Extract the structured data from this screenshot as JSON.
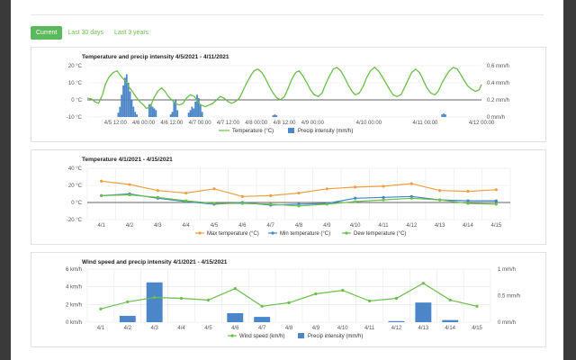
{
  "tabs": [
    "Current",
    "Last 30 days",
    "Last 3 years"
  ],
  "charts": {
    "precip_short": {
      "title": "Temperature and precip intensity 4/5/2021 - 4/11/2021",
      "y_left_ticks": [
        "20 °C",
        "10 °C",
        "0 °C",
        "-10 °C"
      ],
      "y_right_ticks": [
        "0.6 mm/h",
        "0.4 mm/h",
        "0.2 mm/h",
        "0 mm/h"
      ],
      "x_ticks": [
        "4/5 12:00",
        "4/6 00:00",
        "4/6 12:00",
        "4/7 00:00",
        "4/7 12:00",
        "4/8 00:00",
        "4/8 12:00",
        "4/9 00:00",
        "4/10 00:00",
        "4/11 00:00",
        "4/12 00:00"
      ],
      "legend": [
        "Temperature (°C)",
        "Precip intensity (mm/h)"
      ]
    },
    "temp": {
      "title": "Temperature 4/1/2021 - 4/15/2021",
      "y_left_ticks": [
        "40 °C",
        "20 °C",
        "0 °C",
        "-20 °C"
      ],
      "x_ticks": [
        "4/1",
        "4/2",
        "4/3",
        "4/4",
        "4/5",
        "4/6",
        "4/7",
        "4/8",
        "4/9",
        "4/10",
        "4/11",
        "4/12",
        "4/13",
        "4/14",
        "4/15"
      ],
      "legend": [
        "Max temperature (°C)",
        "Min temperature (°C)",
        "Dew temperature (°C)"
      ]
    },
    "wind": {
      "title": "Wind speed and precip intensity 4/1/2021 - 4/15/2021",
      "y_left_ticks": [
        "6 km/h",
        "4 km/h",
        "2 km/h",
        "0 km/h"
      ],
      "y_right_ticks": [
        "1 mm/h",
        "0.5 mm/h",
        "0 mm/h"
      ],
      "x_ticks": [
        "4/1",
        "4/2",
        "4/3",
        "4/4",
        "4/5",
        "4/6",
        "4/7",
        "4/8",
        "4/9",
        "4/10",
        "4/11",
        "4/12",
        "4/13",
        "4/14",
        "4/15"
      ],
      "legend": [
        "Wind speed (km/h)",
        "Precip intensity (mm/h)"
      ]
    }
  },
  "chart_data": [
    {
      "type": "bar",
      "title": "Temperature and precip intensity 4/5/2021 - 4/11/2021",
      "y_left_range": [
        -10,
        20
      ],
      "y_right_range": [
        0,
        0.6
      ],
      "series": [
        {
          "name": "Temperature (°C)",
          "color": "#6cbf4a",
          "kind": "line",
          "x": [
            0,
            0.08,
            0.13,
            0.2,
            0.27,
            0.32,
            0.38,
            0.46,
            0.53,
            0.57,
            0.62,
            0.7,
            0.75,
            0.8,
            0.86,
            0.93,
            1.0,
            1.05,
            1.12,
            1.18,
            1.25,
            1.32,
            1.38,
            1.44,
            1.5,
            1.57,
            1.63,
            1.7,
            1.76,
            1.83,
            1.9,
            1.96,
            2.02,
            2.1,
            2.16,
            2.23,
            2.3,
            2.36,
            2.43,
            2.5,
            2.56,
            2.63,
            2.7,
            2.76,
            2.83,
            2.9,
            2.96,
            3.03,
            3.1,
            3.17,
            3.23,
            3.3,
            3.37,
            3.43,
            3.5,
            3.57,
            3.63,
            3.7,
            3.76,
            3.83,
            3.9,
            3.96,
            4.03,
            4.1,
            4.17,
            4.23,
            4.3,
            4.37,
            4.43,
            4.5,
            4.57,
            4.63,
            4.7,
            4.76,
            4.83,
            4.9,
            4.96,
            5.03,
            5.1,
            5.17,
            5.23,
            5.3,
            5.37,
            5.43,
            5.5,
            5.57,
            5.63,
            5.7,
            5.76,
            5.83,
            5.9,
            5.96,
            6.03,
            6.1,
            6.17,
            6.23,
            6.3,
            6.37,
            6.43,
            6.5,
            6.57,
            6.63,
            6.7,
            6.76,
            6.83,
            6.9,
            6.96,
            7.0
          ],
          "values": [
            1,
            0.5,
            -1,
            -2,
            3,
            9,
            13,
            16,
            17,
            15,
            13,
            10,
            7,
            5,
            2,
            -1,
            -3,
            -5,
            -4,
            1,
            5,
            7,
            5,
            2,
            0,
            -2,
            -3,
            -2,
            1,
            3,
            2,
            -1,
            -3,
            -4,
            -3,
            -2,
            0,
            2,
            1,
            -1,
            -2,
            -1,
            1,
            5,
            10,
            14,
            17,
            18,
            16,
            12,
            8,
            4,
            1,
            0,
            2,
            7,
            12,
            16,
            17,
            14,
            10,
            6,
            3,
            2,
            4,
            9,
            14,
            18,
            19,
            17,
            13,
            9,
            5,
            3,
            4,
            8,
            13,
            17,
            19,
            17,
            14,
            10,
            6,
            3,
            2,
            3,
            7,
            12,
            16,
            18,
            16,
            12,
            7,
            4,
            3,
            5,
            10,
            14,
            17,
            19,
            18,
            15,
            11,
            8,
            6,
            5,
            6,
            9
          ]
        },
        {
          "name": "Precip intensity (mm/h)",
          "color": "#4a86c8",
          "kind": "bar",
          "x": [
            0.55,
            0.58,
            0.61,
            0.64,
            0.67,
            0.7,
            0.73,
            0.76,
            0.79,
            0.82,
            0.85,
            0.88,
            1.1,
            1.13,
            1.16,
            1.19,
            1.22,
            1.48,
            1.51,
            1.54,
            1.57,
            1.6,
            1.8,
            1.83,
            1.86,
            1.89,
            1.92,
            1.95,
            1.98,
            2.01,
            2.04,
            3.3,
            3.33,
            3.36,
            6.3,
            6.33,
            6.36
          ],
          "values": [
            0.05,
            0.12,
            0.26,
            0.37,
            0.46,
            0.5,
            0.4,
            0.3,
            0.2,
            0.12,
            0.06,
            0.03,
            0.15,
            0.15,
            0.12,
            0.1,
            0.08,
            0.03,
            0.06,
            0.18,
            0.2,
            0.08,
            0.05,
            0.08,
            0.12,
            0.1,
            0.18,
            0.26,
            0.22,
            0.14,
            0.06,
            0.02,
            0.03,
            0.02,
            0.03,
            0.04,
            0.03
          ]
        }
      ]
    },
    {
      "type": "line",
      "title": "Temperature 4/1/2021 - 4/15/2021",
      "categories": [
        "4/1",
        "4/2",
        "4/3",
        "4/4",
        "4/5",
        "4/6",
        "4/7",
        "4/8",
        "4/9",
        "4/10",
        "4/11",
        "4/12",
        "4/13",
        "4/14",
        "4/15"
      ],
      "ylim": [
        -20,
        40
      ],
      "series": [
        {
          "name": "Max temperature (°C)",
          "color": "#f0a040",
          "values": [
            25,
            21,
            14,
            11,
            16,
            7,
            8,
            11,
            16,
            18,
            19,
            22,
            14,
            13,
            15
          ]
        },
        {
          "name": "Min temperature (°C)",
          "color": "#3f86c8",
          "values": [
            8,
            10,
            5,
            1,
            -2,
            0,
            -3,
            -2,
            -1,
            5,
            6,
            7,
            3,
            2,
            2
          ]
        },
        {
          "name": "Dew temperature (°C)",
          "color": "#6cbf4a",
          "values": [
            8,
            9,
            6,
            2,
            -1,
            -1,
            -2,
            -4,
            -2,
            1,
            3,
            5,
            3,
            -1,
            -2
          ]
        }
      ]
    },
    {
      "type": "bar",
      "title": "Wind speed and precip intensity 4/1/2021 - 4/15/2021",
      "categories": [
        "4/1",
        "4/2",
        "4/3",
        "4/4",
        "4/5",
        "4/6",
        "4/7",
        "4/8",
        "4/9",
        "4/10",
        "4/11",
        "4/12",
        "4/13",
        "4/14",
        "4/15"
      ],
      "y_left_range": [
        0,
        6
      ],
      "y_right_range": [
        0,
        1
      ],
      "series": [
        {
          "name": "Wind speed (km/h)",
          "color": "#6cbf4a",
          "kind": "line",
          "values": [
            1.5,
            2.3,
            2.8,
            2.7,
            2.5,
            3.8,
            1.8,
            2.2,
            3.2,
            3.6,
            2.4,
            2.7,
            4.4,
            2.5,
            1.8
          ]
        },
        {
          "name": "Precip intensity (mm/h)",
          "color": "#4a86c8",
          "kind": "bar",
          "values": [
            0,
            0.12,
            0.75,
            0,
            0,
            0.17,
            0.1,
            0,
            0,
            0,
            0,
            0.02,
            0.37,
            0.04,
            0
          ]
        }
      ]
    }
  ]
}
